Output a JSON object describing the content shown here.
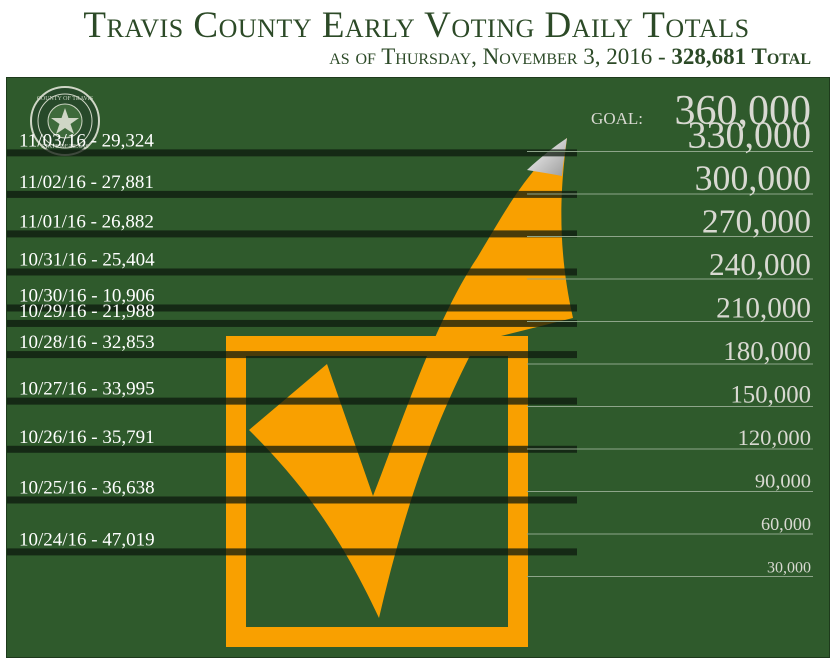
{
  "header": {
    "title": "Travis County Early Voting Daily Totals",
    "subtitle_prefix": "as of Thursday, November 3, 2016 - ",
    "subtitle_total": "328,681 Total"
  },
  "seal": {
    "top_text": "COUNTY OF TRAVIS",
    "bottom_text": "STATE OF TEXAS"
  },
  "colors": {
    "background": "#2f5a2c",
    "accent": "#f9a000",
    "text_light": "#d9d9d2",
    "title": "#2c4a27"
  },
  "chart_data": {
    "type": "bar",
    "orientation": "stacked-horizontal-bands",
    "title": "Travis County Early Voting Daily Totals",
    "subtitle": "as of Thursday, November 3, 2016 - 328,681 Total",
    "goal_label": "GOAL:",
    "goal_value": 360000,
    "goal_value_label": "360,000",
    "total": 328681,
    "ylim": [
      0,
      360000
    ],
    "grid": true,
    "axis_ticks": [
      {
        "value": 30000,
        "label": "30,000"
      },
      {
        "value": 60000,
        "label": "60,000"
      },
      {
        "value": 90000,
        "label": "90,000"
      },
      {
        "value": 120000,
        "label": "120,000"
      },
      {
        "value": 150000,
        "label": "150,000"
      },
      {
        "value": 180000,
        "label": "180,000"
      },
      {
        "value": 210000,
        "label": "210,000"
      },
      {
        "value": 240000,
        "label": "240,000"
      },
      {
        "value": 270000,
        "label": "270,000"
      },
      {
        "value": 300000,
        "label": "300,000"
      },
      {
        "value": 330000,
        "label": "330,000"
      }
    ],
    "days": [
      {
        "label": "10/24/16 - 47,019",
        "value": 47019
      },
      {
        "label": "10/25/16 - 36,638",
        "value": 36638
      },
      {
        "label": "10/26/16 - 35,791",
        "value": 35791
      },
      {
        "label": "10/27/16 - 33,995",
        "value": 33995
      },
      {
        "label": "10/28/16 - 32,853",
        "value": 32853
      },
      {
        "label": "10/29/16 - 21,988",
        "value": 21988
      },
      {
        "label": "10/30/16 - 10,906",
        "value": 10906
      },
      {
        "label": "10/31/16 - 25,404",
        "value": 25404
      },
      {
        "label": "11/01/16 - 26,882",
        "value": 26882
      },
      {
        "label": "11/02/16 - 27,881",
        "value": 27881
      },
      {
        "label": "11/03/16 - 29,324",
        "value": 29324
      }
    ]
  }
}
